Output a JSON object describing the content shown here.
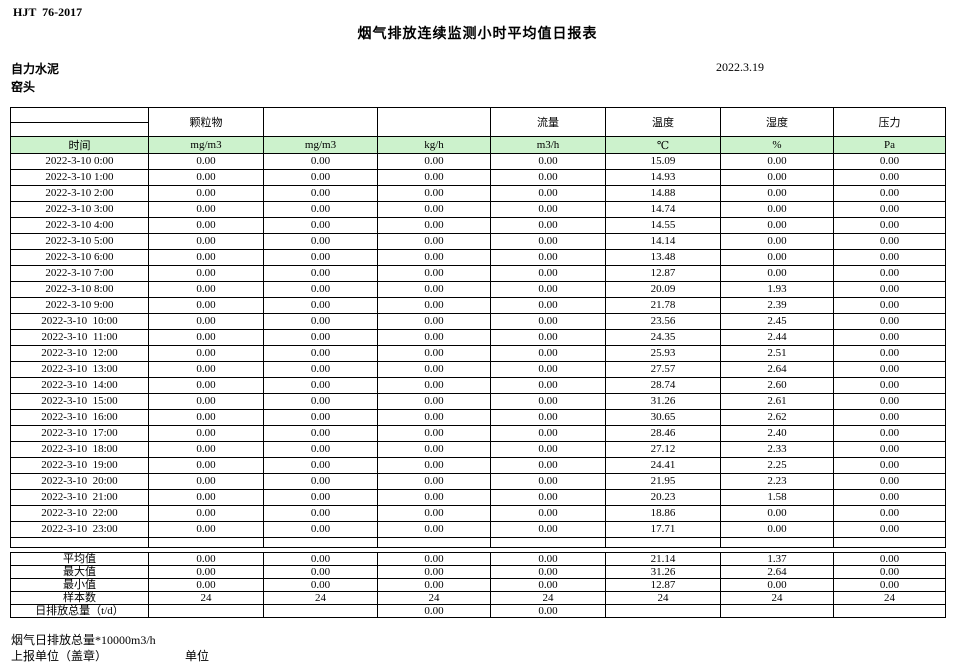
{
  "page": {
    "standard": "HJT  76-2017",
    "title": "烟气排放连续监测小时平均值日报表",
    "company": "自力水泥",
    "date": "2022.3.19",
    "station": "窑头"
  },
  "colors": {
    "header_green": "#ccf2cc",
    "border": "#000000"
  },
  "table": {
    "group_headers": [
      "",
      "颗粒物",
      "",
      "",
      "流量",
      "温度",
      "湿度",
      "压力"
    ],
    "unit_headers": [
      "时间",
      "mg/m3",
      "mg/m3",
      "kg/h",
      "m3/h",
      "℃",
      "%",
      "Pa"
    ],
    "rows": [
      [
        "2022-3-10 0:00",
        "0.00",
        "0.00",
        "0.00",
        "0.00",
        "15.09",
        "0.00",
        "0.00"
      ],
      [
        "2022-3-10 1:00",
        "0.00",
        "0.00",
        "0.00",
        "0.00",
        "14.93",
        "0.00",
        "0.00"
      ],
      [
        "2022-3-10 2:00",
        "0.00",
        "0.00",
        "0.00",
        "0.00",
        "14.88",
        "0.00",
        "0.00"
      ],
      [
        "2022-3-10 3:00",
        "0.00",
        "0.00",
        "0.00",
        "0.00",
        "14.74",
        "0.00",
        "0.00"
      ],
      [
        "2022-3-10 4:00",
        "0.00",
        "0.00",
        "0.00",
        "0.00",
        "14.55",
        "0.00",
        "0.00"
      ],
      [
        "2022-3-10 5:00",
        "0.00",
        "0.00",
        "0.00",
        "0.00",
        "14.14",
        "0.00",
        "0.00"
      ],
      [
        "2022-3-10 6:00",
        "0.00",
        "0.00",
        "0.00",
        "0.00",
        "13.48",
        "0.00",
        "0.00"
      ],
      [
        "2022-3-10 7:00",
        "0.00",
        "0.00",
        "0.00",
        "0.00",
        "12.87",
        "0.00",
        "0.00"
      ],
      [
        "2022-3-10 8:00",
        "0.00",
        "0.00",
        "0.00",
        "0.00",
        "20.09",
        "1.93",
        "0.00"
      ],
      [
        "2022-3-10 9:00",
        "0.00",
        "0.00",
        "0.00",
        "0.00",
        "21.78",
        "2.39",
        "0.00"
      ],
      [
        "2022-3-10  10:00",
        "0.00",
        "0.00",
        "0.00",
        "0.00",
        "23.56",
        "2.45",
        "0.00"
      ],
      [
        "2022-3-10  11:00",
        "0.00",
        "0.00",
        "0.00",
        "0.00",
        "24.35",
        "2.44",
        "0.00"
      ],
      [
        "2022-3-10  12:00",
        "0.00",
        "0.00",
        "0.00",
        "0.00",
        "25.93",
        "2.51",
        "0.00"
      ],
      [
        "2022-3-10  13:00",
        "0.00",
        "0.00",
        "0.00",
        "0.00",
        "27.57",
        "2.64",
        "0.00"
      ],
      [
        "2022-3-10  14:00",
        "0.00",
        "0.00",
        "0.00",
        "0.00",
        "28.74",
        "2.60",
        "0.00"
      ],
      [
        "2022-3-10  15:00",
        "0.00",
        "0.00",
        "0.00",
        "0.00",
        "31.26",
        "2.61",
        "0.00"
      ],
      [
        "2022-3-10  16:00",
        "0.00",
        "0.00",
        "0.00",
        "0.00",
        "30.65",
        "2.62",
        "0.00"
      ],
      [
        "2022-3-10  17:00",
        "0.00",
        "0.00",
        "0.00",
        "0.00",
        "28.46",
        "2.40",
        "0.00"
      ],
      [
        "2022-3-10  18:00",
        "0.00",
        "0.00",
        "0.00",
        "0.00",
        "27.12",
        "2.33",
        "0.00"
      ],
      [
        "2022-3-10  19:00",
        "0.00",
        "0.00",
        "0.00",
        "0.00",
        "24.41",
        "2.25",
        "0.00"
      ],
      [
        "2022-3-10  20:00",
        "0.00",
        "0.00",
        "0.00",
        "0.00",
        "21.95",
        "2.23",
        "0.00"
      ],
      [
        "2022-3-10  21:00",
        "0.00",
        "0.00",
        "0.00",
        "0.00",
        "20.23",
        "1.58",
        "0.00"
      ],
      [
        "2022-3-10  22:00",
        "0.00",
        "0.00",
        "0.00",
        "0.00",
        "18.86",
        "0.00",
        "0.00"
      ],
      [
        "2022-3-10  23:00",
        "0.00",
        "0.00",
        "0.00",
        "0.00",
        "17.71",
        "0.00",
        "0.00"
      ]
    ]
  },
  "summary": {
    "rows": [
      {
        "label": "平均值",
        "values": [
          "0.00",
          "0.00",
          "0.00",
          "0.00",
          "21.14",
          "1.37",
          "0.00"
        ]
      },
      {
        "label": "最大值",
        "values": [
          "0.00",
          "0.00",
          "0.00",
          "0.00",
          "31.26",
          "2.64",
          "0.00"
        ]
      },
      {
        "label": "最小值",
        "values": [
          "0.00",
          "0.00",
          "0.00",
          "0.00",
          "12.87",
          "0.00",
          "0.00"
        ]
      },
      {
        "label": "样本数",
        "values": [
          "24",
          "24",
          "24",
          "24",
          "24",
          "24",
          "24"
        ]
      },
      {
        "label": "日排放总量（t/d）",
        "values": [
          "",
          "",
          "0.00",
          "0.00",
          "",
          "",
          ""
        ]
      }
    ]
  },
  "footer": {
    "note": "烟气日排放总量*10000m3/h",
    "report_unit_label": "上报单位（盖章）",
    "unit_label": "单位"
  }
}
